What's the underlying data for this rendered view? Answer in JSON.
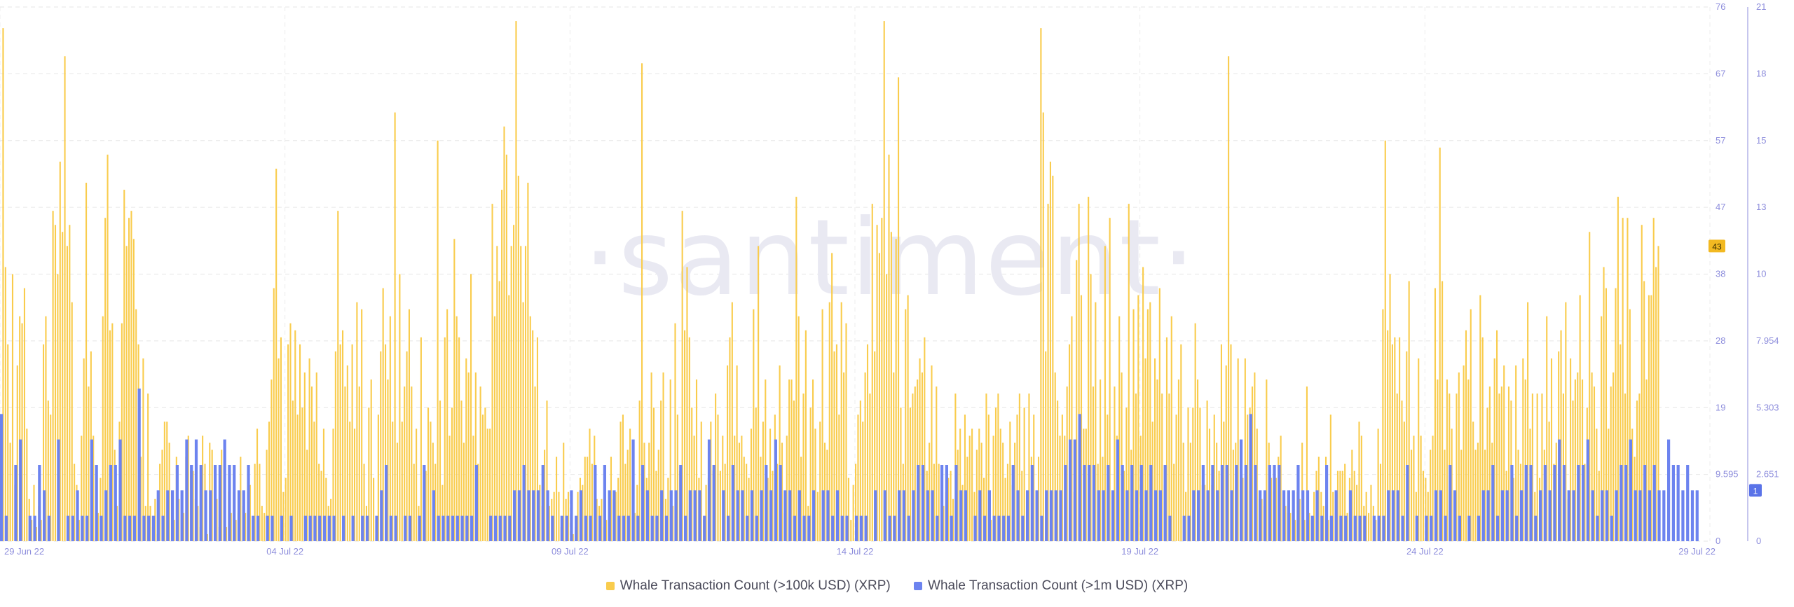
{
  "chart_data": {
    "type": "bar",
    "watermark": "·santiment·",
    "x_ticks": [
      "29 Jun 22",
      "04 Jul 22",
      "09 Jul 22",
      "14 Jul 22",
      "19 Jul 22",
      "24 Jul 22",
      "29 Jul 22"
    ],
    "x_range": [
      "2022-06-29T00:00",
      "2022-07-29T00:00"
    ],
    "left_axis": {
      "ylim": [
        0,
        76
      ],
      "ticks": [
        "0",
        "9.595",
        "19",
        "28",
        "38",
        "47",
        "57",
        "67",
        "76"
      ]
    },
    "right_axis": {
      "ylim": [
        0,
        21
      ],
      "ticks": [
        "0",
        "2.651",
        "5.303",
        "7.954",
        "10",
        "13",
        "15",
        "18",
        "21"
      ]
    },
    "last_value_badges": {
      "left": "43",
      "right": "1"
    },
    "grid": true,
    "legend_position": "bottom-center",
    "series": [
      {
        "name": "Whale Transaction Count (>100k USD) (XRP)",
        "color": "#f9cc4d",
        "axis": "left",
        "interval_hours": 1,
        "values": [
          14,
          73,
          39,
          28,
          14,
          38,
          8,
          25,
          32,
          31,
          36,
          16,
          6,
          3,
          8,
          2,
          5,
          3,
          28,
          32,
          20,
          18,
          47,
          45,
          38,
          54,
          44,
          69,
          42,
          45,
          34,
          11,
          8,
          3,
          15,
          26,
          51,
          22,
          27,
          15,
          4,
          4,
          9,
          32,
          46,
          55,
          30,
          31,
          13,
          5,
          17,
          31,
          50,
          42,
          46,
          47,
          43,
          33,
          28,
          12,
          26,
          5,
          21,
          5,
          2,
          6,
          1,
          11,
          13,
          17,
          17,
          14,
          7,
          3,
          12,
          6,
          3,
          4,
          12,
          15,
          10,
          10,
          6,
          5,
          2,
          15,
          11,
          1,
          14,
          13,
          5,
          6,
          2,
          13,
          1,
          2,
          7,
          4,
          7,
          3,
          4,
          12,
          5,
          4,
          2,
          8,
          3,
          11,
          16,
          11,
          5,
          4,
          13,
          17,
          23,
          36,
          53,
          26,
          29,
          7,
          9,
          28,
          31,
          20,
          30,
          18,
          28,
          19,
          24,
          13,
          26,
          22,
          17,
          24,
          11,
          10,
          16,
          9,
          5,
          6,
          16,
          27,
          47,
          28,
          30,
          22,
          25,
          17,
          28,
          16,
          34,
          22,
          33,
          11,
          5,
          19,
          23,
          9,
          3,
          18,
          27,
          36,
          28,
          23,
          32,
          17,
          61,
          14,
          38,
          17,
          22,
          27,
          33,
          22,
          11,
          16,
          5,
          29,
          3,
          10,
          19,
          17,
          14,
          11,
          57,
          20,
          8,
          29,
          33,
          15,
          19,
          43,
          32,
          29,
          20,
          14,
          26,
          24,
          38,
          15,
          24,
          11,
          22,
          18,
          19,
          16,
          16,
          48,
          32,
          42,
          37,
          50,
          59,
          55,
          35,
          42,
          45,
          74,
          52,
          42,
          34,
          42,
          51,
          32,
          30,
          22,
          29,
          8,
          5,
          13,
          20,
          5,
          6,
          7,
          12,
          7,
          2,
          14,
          6,
          7,
          4,
          1,
          2,
          7,
          9,
          8,
          12,
          12,
          16,
          11,
          15,
          6,
          5,
          6,
          2,
          3,
          3,
          12,
          6,
          7,
          9,
          17,
          18,
          11,
          13,
          16,
          8,
          4,
          8,
          20,
          68,
          14,
          9,
          14,
          24,
          19,
          10,
          13,
          20,
          24,
          6,
          9,
          23,
          5,
          31,
          18,
          10,
          47,
          30,
          39,
          29,
          19,
          15,
          23,
          9,
          17,
          3,
          8,
          9,
          17,
          10,
          21,
          18,
          10,
          15,
          11,
          25,
          29,
          34,
          15,
          25,
          14,
          15,
          12,
          11,
          9,
          16,
          33,
          19,
          42,
          12,
          17,
          23,
          9,
          16,
          10,
          18,
          11,
          25,
          14,
          4,
          15,
          23,
          23,
          20,
          49,
          32,
          12,
          21,
          30,
          5,
          19,
          23,
          16,
          7,
          17,
          33,
          14,
          13,
          34,
          41,
          27,
          28,
          18,
          34,
          24,
          31,
          9,
          3,
          8,
          11,
          18,
          20,
          17,
          24,
          28,
          21,
          48,
          27,
          45,
          41,
          46,
          74,
          38,
          55,
          44,
          24,
          43,
          66,
          19,
          11,
          33,
          35,
          19,
          21,
          22,
          23,
          26,
          24,
          29,
          10,
          14,
          25,
          11,
          22,
          11,
          10,
          5,
          7,
          9,
          10,
          6,
          21,
          13,
          16,
          8,
          18,
          12,
          15,
          16,
          7,
          13,
          16,
          14,
          9,
          21,
          18,
          3,
          15,
          19,
          21,
          16,
          14,
          9,
          11,
          17,
          8,
          14,
          18,
          21,
          10,
          19,
          7,
          21,
          12,
          18,
          1,
          12,
          73,
          61,
          27,
          48,
          54,
          52,
          24,
          20,
          15,
          18,
          15,
          22,
          28,
          32,
          7,
          40,
          48,
          35,
          16,
          16,
          49,
          38,
          22,
          34,
          11,
          23,
          12,
          42,
          18,
          46,
          6,
          22,
          15,
          32,
          24,
          10,
          19,
          48,
          13,
          33,
          21,
          35,
          15,
          39,
          26,
          33,
          34,
          17,
          26,
          23,
          36,
          21,
          8,
          29,
          21,
          32,
          11,
          18,
          23,
          28,
          14,
          7,
          19,
          14,
          19,
          31,
          23,
          19,
          8,
          8,
          20,
          16,
          8,
          18,
          14,
          10,
          28,
          17,
          25,
          69,
          28,
          13,
          14,
          26,
          13,
          9,
          26,
          18,
          19,
          22,
          24,
          16,
          6,
          6,
          5,
          23,
          14,
          9,
          7,
          9,
          12,
          15,
          6,
          5,
          4,
          4,
          4,
          3,
          7,
          6,
          14,
          3,
          22,
          4,
          3,
          7,
          10,
          12,
          7,
          5,
          12,
          3,
          18,
          7,
          4,
          10,
          10,
          10,
          11,
          4,
          9,
          13,
          10,
          8,
          17,
          15,
          5,
          7,
          4,
          8,
          5,
          3,
          16,
          11,
          33,
          57,
          30,
          38,
          28,
          29,
          21,
          29,
          20,
          17,
          27,
          37,
          13,
          15,
          7,
          26,
          15,
          10,
          9,
          7,
          13,
          15,
          36,
          23,
          56,
          37,
          13,
          23,
          21,
          16,
          5,
          21,
          24,
          13,
          25,
          30,
          23,
          33,
          17,
          13,
          14,
          35,
          29,
          13,
          19,
          22,
          14,
          26,
          30,
          21,
          22,
          25,
          10,
          22,
          20,
          9,
          25,
          13,
          11,
          26,
          23,
          34,
          16,
          21,
          7,
          21,
          9,
          21,
          13,
          32,
          17,
          26,
          11,
          14,
          27,
          30,
          21,
          34,
          6,
          26,
          20,
          23,
          24,
          35,
          23,
          11,
          19,
          44,
          24,
          22,
          16,
          10,
          32,
          39,
          36,
          16,
          22,
          24,
          36,
          49,
          28,
          46,
          21,
          46,
          33,
          16,
          12,
          20,
          21,
          45,
          37,
          23,
          35,
          35,
          46,
          39,
          42
        ]
      },
      {
        "name": "Whale Transaction Count (>1m USD) (XRP)",
        "color": "#6c83ef",
        "axis": "right",
        "interval_hours": 2,
        "values": [
          5,
          1,
          0,
          3,
          4,
          0,
          1,
          1,
          3,
          2,
          1,
          0,
          4,
          0,
          1,
          1,
          2,
          1,
          1,
          4,
          3,
          1,
          2,
          3,
          3,
          4,
          1,
          1,
          1,
          6,
          1,
          1,
          1,
          2,
          1,
          2,
          2,
          3,
          2,
          4,
          3,
          4,
          3,
          2,
          2,
          3,
          3,
          4,
          3,
          3,
          2,
          2,
          3,
          1,
          1,
          0,
          1,
          1,
          0,
          1,
          0,
          1,
          0,
          0,
          1,
          1,
          1,
          1,
          1,
          1,
          1,
          0,
          1,
          0,
          1,
          0,
          1,
          1,
          0,
          1,
          2,
          3,
          1,
          1,
          0,
          1,
          1,
          0,
          1,
          3,
          0,
          2,
          1,
          1,
          1,
          1,
          1,
          1,
          1,
          1,
          3,
          0,
          0,
          1,
          1,
          1,
          1,
          1,
          2,
          2,
          3,
          2,
          2,
          2,
          3,
          2,
          1,
          0,
          1,
          1,
          2,
          1,
          2,
          1,
          1,
          3,
          1,
          3,
          2,
          2,
          1,
          1,
          1,
          4,
          1,
          3,
          2,
          1,
          1,
          2,
          1,
          2,
          2,
          3,
          1,
          2,
          2,
          2,
          1,
          4,
          3,
          0,
          2,
          1,
          3,
          2,
          2,
          1,
          2,
          1,
          2,
          3,
          2,
          4,
          3,
          2,
          2,
          1,
          2,
          1,
          1,
          2,
          0,
          2,
          2,
          1,
          2,
          1,
          1,
          0,
          1,
          1,
          1,
          0,
          2,
          0,
          2,
          1,
          1,
          2,
          2,
          1,
          2,
          3,
          3,
          2,
          2,
          1,
          3,
          3,
          1,
          3,
          2,
          2,
          0,
          1,
          2,
          1,
          2,
          1,
          1,
          1,
          1,
          3,
          2,
          1,
          2,
          3,
          2,
          1,
          2,
          2,
          2,
          2,
          3,
          4,
          4,
          5,
          3,
          3,
          3,
          2,
          2,
          3,
          2,
          4,
          3,
          2,
          3,
          2,
          3,
          2,
          3,
          2,
          2,
          3,
          1,
          0,
          0,
          1,
          1,
          2,
          2,
          3,
          2,
          3,
          2,
          3,
          3,
          2,
          3,
          4,
          3,
          5,
          3,
          2,
          2,
          3,
          3,
          3,
          2,
          2,
          2,
          3,
          2,
          2,
          1,
          2,
          1,
          3,
          1,
          2,
          1,
          1,
          2,
          1,
          1,
          1,
          0,
          1,
          1,
          1,
          2,
          2,
          2,
          1,
          3,
          0,
          1,
          0,
          1,
          1,
          2,
          2,
          1,
          3,
          2,
          1,
          0,
          1,
          0,
          1,
          2,
          2,
          3,
          1,
          2,
          2,
          3,
          1,
          2,
          3,
          3,
          1,
          2,
          3,
          2,
          3,
          4,
          3,
          2,
          2,
          3,
          3,
          4,
          2,
          1,
          2,
          2,
          1,
          2,
          3,
          3,
          4,
          2,
          2,
          3,
          2,
          3,
          2,
          2,
          4,
          3,
          3,
          2,
          3,
          2,
          2
        ]
      }
    ]
  }
}
